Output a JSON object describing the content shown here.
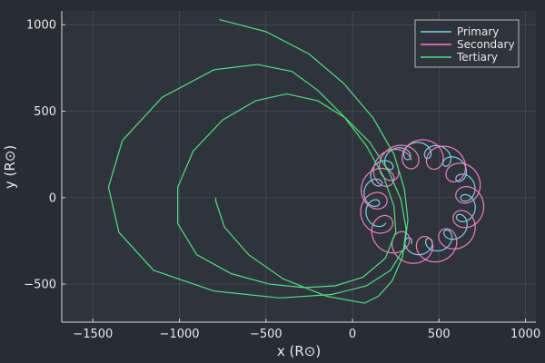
{
  "chart_data": {
    "type": "line",
    "title": "",
    "xlabel": "x (R⊙)",
    "ylabel": "y (R⊙)",
    "xlim": [
      -1680,
      1060
    ],
    "ylim": [
      -720,
      1080
    ],
    "xticks": [
      -1500,
      -1000,
      -500,
      0,
      500,
      1000
    ],
    "xtick_labels": [
      "−1500",
      "−1000",
      "−500",
      "0",
      "500",
      "1000"
    ],
    "yticks": [
      -500,
      0,
      500,
      1000
    ],
    "ytick_labels": [
      "−500",
      "0",
      "500",
      "1000"
    ],
    "grid": true,
    "legend": "top-right",
    "series": [
      {
        "name": "Primary",
        "color": "#7ecfe8",
        "kind": "orbit",
        "center": [
          390,
          -5
        ],
        "guide_radius": 280,
        "guide_angle_from": 250,
        "guide_angle_to": 570,
        "loop_radius": 45,
        "loops": 13
      },
      {
        "name": "Secondary",
        "color": "#f080c0",
        "kind": "orbit",
        "center": [
          400,
          -25
        ],
        "guide_radius": 280,
        "guide_angle_from": 120,
        "guide_angle_to": 500,
        "loop_radius": 80,
        "loops": 13
      },
      {
        "name": "Tertiary",
        "color": "#4fe080",
        "kind": "path",
        "points": [
          [
            -770,
            1030
          ],
          [
            -500,
            960
          ],
          [
            -250,
            830
          ],
          [
            -50,
            660
          ],
          [
            120,
            460
          ],
          [
            240,
            250
          ],
          [
            300,
            50
          ],
          [
            320,
            -130
          ],
          [
            300,
            -290
          ],
          [
            220,
            -420
          ],
          [
            80,
            -510
          ],
          [
            -120,
            -560
          ],
          [
            -420,
            -580
          ],
          [
            -800,
            -540
          ],
          [
            -1150,
            -420
          ],
          [
            -1350,
            -200
          ],
          [
            -1410,
            60
          ],
          [
            -1330,
            330
          ],
          [
            -1100,
            580
          ],
          [
            -800,
            740
          ],
          [
            -550,
            770
          ],
          [
            -350,
            730
          ],
          [
            -200,
            620
          ],
          [
            -50,
            470
          ],
          [
            80,
            300
          ],
          [
            180,
            120
          ],
          [
            240,
            -50
          ],
          [
            250,
            -200
          ],
          [
            190,
            -350
          ],
          [
            60,
            -460
          ],
          [
            -100,
            -510
          ],
          [
            -280,
            -520
          ],
          [
            -480,
            -500
          ],
          [
            -700,
            -440
          ],
          [
            -900,
            -330
          ],
          [
            -1010,
            -150
          ],
          [
            -1010,
            60
          ],
          [
            -920,
            270
          ],
          [
            -750,
            450
          ],
          [
            -560,
            560
          ],
          [
            -380,
            600
          ],
          [
            -200,
            560
          ],
          [
            -40,
            460
          ],
          [
            100,
            320
          ],
          [
            210,
            150
          ],
          [
            280,
            -10
          ],
          [
            310,
            -180
          ],
          [
            290,
            -340
          ],
          [
            230,
            -480
          ],
          [
            150,
            -570
          ],
          [
            70,
            -610
          ],
          [
            -150,
            -570
          ],
          [
            -400,
            -470
          ],
          [
            -600,
            -330
          ],
          [
            -740,
            -170
          ],
          [
            -790,
            -20
          ],
          [
            -790,
            0
          ]
        ]
      }
    ]
  }
}
